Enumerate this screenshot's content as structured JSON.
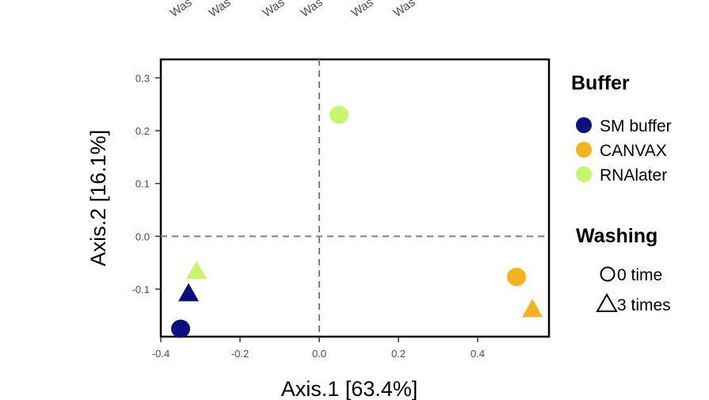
{
  "chart_data": {
    "type": "scatter",
    "xlabel": "Axis.1 [63.4%]",
    "ylabel": "Axis.2 [16.1%]",
    "xlim": [
      -0.4,
      0.58
    ],
    "ylim": [
      -0.19,
      0.335
    ],
    "xticks": [
      -0.4,
      -0.2,
      0.0,
      0.2,
      0.4
    ],
    "xtick_labels": [
      "-0.4",
      "-0.2",
      "0.0",
      "0.2",
      "0.4"
    ],
    "yticks": [
      -0.1,
      0.0,
      0.1,
      0.2,
      0.3
    ],
    "ytick_labels": [
      "-0.1",
      "0.0",
      "0.1",
      "0.2",
      "0.3"
    ],
    "reference_lines": {
      "x": 0,
      "y": 0,
      "style": "dashed",
      "color": "#808080"
    },
    "grid": false,
    "legend_position": "right",
    "top_labels_partial": [
      "Was",
      "Was",
      "Was",
      "Was",
      "Was",
      "Was"
    ],
    "legends": [
      {
        "title": "Buffer",
        "entries": [
          {
            "label": "SM buffer",
            "color": "#0a0f7d"
          },
          {
            "label": "CANVAX",
            "color": "#f5b21c"
          },
          {
            "label": "RNAlater",
            "color": "#c8f56e"
          }
        ]
      },
      {
        "title": "Washing",
        "entries": [
          {
            "label": "0 time",
            "shape": "circle"
          },
          {
            "label": "3 times",
            "shape": "triangle"
          }
        ]
      }
    ],
    "points": [
      {
        "buffer": "SM buffer",
        "washing": "0 time",
        "x": -0.35,
        "y": -0.175,
        "color": "#0a0f7d",
        "shape": "circle"
      },
      {
        "buffer": "SM buffer",
        "washing": "3 times",
        "x": -0.33,
        "y": -0.108,
        "color": "#0a0f7d",
        "shape": "triangle"
      },
      {
        "buffer": "RNAlater",
        "washing": "3 times",
        "x": -0.31,
        "y": -0.066,
        "color": "#c8f56e",
        "shape": "triangle"
      },
      {
        "buffer": "RNAlater",
        "washing": "0 time",
        "x": 0.05,
        "y": 0.23,
        "color": "#c8f56e",
        "shape": "circle"
      },
      {
        "buffer": "CANVAX",
        "washing": "0 time",
        "x": 0.498,
        "y": -0.077,
        "color": "#f5b21c",
        "shape": "circle"
      },
      {
        "buffer": "CANVAX",
        "washing": "3 times",
        "x": 0.538,
        "y": -0.138,
        "color": "#f5b21c",
        "shape": "triangle"
      }
    ]
  }
}
